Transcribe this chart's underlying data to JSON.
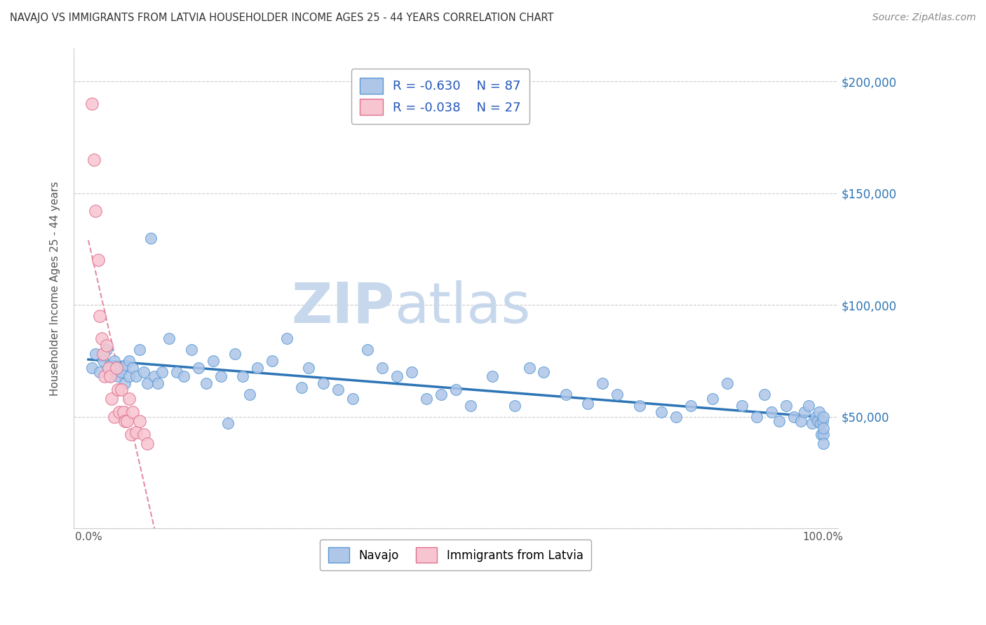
{
  "title": "NAVAJO VS IMMIGRANTS FROM LATVIA HOUSEHOLDER INCOME AGES 25 - 44 YEARS CORRELATION CHART",
  "source": "Source: ZipAtlas.com",
  "ylabel": "Householder Income Ages 25 - 44 years",
  "xlim": [
    -0.02,
    1.02
  ],
  "ylim": [
    0,
    215000
  ],
  "xticks": [
    0.0,
    0.1,
    0.2,
    0.3,
    0.4,
    0.5,
    0.6,
    0.7,
    0.8,
    0.9,
    1.0
  ],
  "xticklabels": [
    "0.0%",
    "",
    "",
    "",
    "",
    "",
    "",
    "",
    "",
    "",
    "100.0%"
  ],
  "ytick_values": [
    0,
    50000,
    100000,
    150000,
    200000
  ],
  "ytick_labels": [
    "",
    "$50,000",
    "$100,000",
    "$150,000",
    "$200,000"
  ],
  "navajo_R": -0.63,
  "navajo_N": 87,
  "latvia_R": -0.038,
  "latvia_N": 27,
  "navajo_color": "#aec6e8",
  "navajo_edge_color": "#5b9bd5",
  "latvia_color": "#f7c5d0",
  "latvia_edge_color": "#e07090",
  "navajo_line_color": "#2e75b6",
  "latvia_line_color": "#e07090",
  "watermark_zip": "ZIP",
  "watermark_atlas": "atlas",
  "watermark_color": "#d0dff0",
  "legend_label_1": "Navajo",
  "legend_label_2": "Immigrants from Latvia",
  "navajo_x": [
    0.005,
    0.01,
    0.015,
    0.02,
    0.025,
    0.03,
    0.03,
    0.035,
    0.04,
    0.04,
    0.045,
    0.05,
    0.05,
    0.055,
    0.055,
    0.06,
    0.065,
    0.07,
    0.075,
    0.08,
    0.085,
    0.09,
    0.095,
    0.1,
    0.11,
    0.12,
    0.13,
    0.14,
    0.15,
    0.16,
    0.17,
    0.18,
    0.19,
    0.2,
    0.21,
    0.22,
    0.23,
    0.25,
    0.27,
    0.29,
    0.3,
    0.32,
    0.34,
    0.36,
    0.38,
    0.4,
    0.42,
    0.44,
    0.46,
    0.48,
    0.5,
    0.52,
    0.55,
    0.58,
    0.6,
    0.62,
    0.65,
    0.68,
    0.7,
    0.72,
    0.75,
    0.78,
    0.8,
    0.82,
    0.85,
    0.87,
    0.89,
    0.91,
    0.92,
    0.93,
    0.94,
    0.95,
    0.96,
    0.97,
    0.975,
    0.98,
    0.985,
    0.99,
    0.993,
    0.995,
    0.997,
    0.998,
    0.999,
    1.0,
    1.0,
    1.0,
    1.0
  ],
  "navajo_y": [
    72000,
    78000,
    70000,
    75000,
    80000,
    73000,
    68000,
    75000,
    72000,
    68000,
    70000,
    65000,
    73000,
    68000,
    75000,
    72000,
    68000,
    80000,
    70000,
    65000,
    130000,
    68000,
    65000,
    70000,
    85000,
    70000,
    68000,
    80000,
    72000,
    65000,
    75000,
    68000,
    47000,
    78000,
    68000,
    60000,
    72000,
    75000,
    85000,
    63000,
    72000,
    65000,
    62000,
    58000,
    80000,
    72000,
    68000,
    70000,
    58000,
    60000,
    62000,
    55000,
    68000,
    55000,
    72000,
    70000,
    60000,
    56000,
    65000,
    60000,
    55000,
    52000,
    50000,
    55000,
    58000,
    65000,
    55000,
    50000,
    60000,
    52000,
    48000,
    55000,
    50000,
    48000,
    52000,
    55000,
    47000,
    50000,
    48000,
    52000,
    47000,
    42000,
    48000,
    50000,
    42000,
    45000,
    38000
  ],
  "latvia_x": [
    0.005,
    0.008,
    0.01,
    0.013,
    0.015,
    0.018,
    0.02,
    0.022,
    0.025,
    0.028,
    0.03,
    0.032,
    0.035,
    0.038,
    0.04,
    0.042,
    0.045,
    0.048,
    0.05,
    0.053,
    0.055,
    0.058,
    0.06,
    0.065,
    0.07,
    0.075,
    0.08
  ],
  "latvia_y": [
    190000,
    165000,
    142000,
    120000,
    95000,
    85000,
    78000,
    68000,
    82000,
    72000,
    68000,
    58000,
    50000,
    72000,
    62000,
    52000,
    62000,
    52000,
    48000,
    48000,
    58000,
    42000,
    52000,
    43000,
    48000,
    42000,
    38000
  ]
}
